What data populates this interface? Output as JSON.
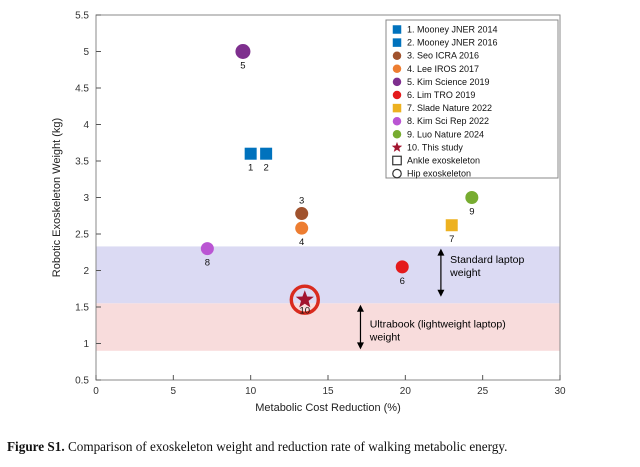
{
  "chart_data": {
    "type": "scatter",
    "xlabel": "Metabolic Cost Reduction (%)",
    "ylabel": "Robotic Exoskeleton Weight (kg)",
    "xlim": [
      0,
      30
    ],
    "ylim": [
      0.5,
      5.5
    ],
    "xticks": [
      0,
      5,
      10,
      15,
      20,
      25,
      30
    ],
    "xtick_labels": [
      "0",
      "5",
      "10",
      "15",
      "20",
      "25",
      "30"
    ],
    "yticks": [
      0.5,
      1,
      1.5,
      2,
      2.5,
      3,
      3.5,
      4,
      4.5,
      5,
      5.5
    ],
    "ytick_labels": [
      "0.5",
      "1",
      "1.5",
      "2",
      "2.5",
      "3",
      "3.5",
      "4",
      "4.5",
      "5",
      "5.5"
    ],
    "grid": false,
    "ring_color": "#D92B1E",
    "points": [
      {
        "id": "1",
        "study": "Mooney JNER 2014",
        "x": 10.0,
        "y": 3.6,
        "marker": "square",
        "color": "#0072BD",
        "size": 12
      },
      {
        "id": "2",
        "study": "Mooney JNER 2016",
        "x": 11.0,
        "y": 3.6,
        "marker": "square",
        "color": "#0072BD",
        "size": 12
      },
      {
        "id": "3",
        "study": "Seo ICRA 2016",
        "x": 13.3,
        "y": 2.78,
        "marker": "circle",
        "color": "#A0522D",
        "size": 13,
        "ldy": -10
      },
      {
        "id": "4",
        "study": "Lee IROS 2017",
        "x": 13.3,
        "y": 2.58,
        "marker": "circle",
        "color": "#ED7D31",
        "size": 13
      },
      {
        "id": "5",
        "study": "Kim Science 2019",
        "x": 9.5,
        "y": 5.0,
        "marker": "circle",
        "color": "#7E2F8E",
        "size": 15
      },
      {
        "id": "6",
        "study": "Lim TRO 2019",
        "x": 19.8,
        "y": 2.05,
        "marker": "circle",
        "color": "#E41A1C",
        "size": 13
      },
      {
        "id": "7",
        "study": "Slade Nature 2022",
        "x": 23.0,
        "y": 2.62,
        "marker": "square",
        "color": "#EDB120",
        "size": 12
      },
      {
        "id": "8",
        "study": "Kim Sci Rep 2022",
        "x": 7.2,
        "y": 2.3,
        "marker": "circle",
        "color": "#BA55D3",
        "size": 13
      },
      {
        "id": "9",
        "study": "Luo Nature 2024",
        "x": 24.3,
        "y": 3.0,
        "marker": "circle",
        "color": "#77AC30",
        "size": 13
      },
      {
        "id": "10",
        "study": "This study",
        "x": 13.5,
        "y": 1.6,
        "marker": "star",
        "color": "#A2142F",
        "size": 19,
        "ring": true,
        "ldy": 14
      }
    ],
    "bands": [
      {
        "name": "standard-laptop",
        "ymin": 1.55,
        "ymax": 2.33,
        "color": "#DBDAF3"
      },
      {
        "name": "ultrabook",
        "ymin": 0.9,
        "ymax": 1.55,
        "color": "#F8DCDC"
      }
    ],
    "annotations": [
      {
        "name": "standard-laptop",
        "lines": [
          "Standard laptop",
          "weight"
        ],
        "text_x": 22.9,
        "text_y": 2.1,
        "arrow_x": 22.3,
        "arrow_y1": 2.3,
        "arrow_y2": 1.64
      },
      {
        "name": "ultrabook",
        "lines": [
          "Ultrabook (lightweight laptop)",
          "weight"
        ],
        "text_x": 17.7,
        "text_y": 1.22,
        "arrow_x": 17.1,
        "arrow_y1": 1.53,
        "arrow_y2": 0.92
      }
    ]
  },
  "legend": {
    "items": [
      {
        "label": "1. Mooney JNER 2014",
        "marker": "square",
        "color": "#0072BD"
      },
      {
        "label": "2. Mooney JNER 2016",
        "marker": "square",
        "color": "#0072BD"
      },
      {
        "label": "3. Seo ICRA 2016",
        "marker": "circle",
        "color": "#A0522D"
      },
      {
        "label": "4. Lee IROS 2017",
        "marker": "circle",
        "color": "#ED7D31"
      },
      {
        "label": "5. Kim Science 2019",
        "marker": "circle",
        "color": "#7E2F8E"
      },
      {
        "label": "6. Lim TRO 2019",
        "marker": "circle",
        "color": "#E41A1C"
      },
      {
        "label": "7. Slade Nature 2022",
        "marker": "square",
        "color": "#EDB120"
      },
      {
        "label": "8. Kim Sci Rep 2022",
        "marker": "circle",
        "color": "#BA55D3"
      },
      {
        "label": "9. Luo Nature 2024",
        "marker": "circle",
        "color": "#77AC30"
      },
      {
        "label": "10. This study",
        "marker": "star",
        "color": "#A2142F"
      },
      {
        "label": "Ankle exoskeleton",
        "marker": "open-square",
        "color": "#333333"
      },
      {
        "label": "Hip exoskeleton",
        "marker": "open-circle",
        "color": "#333333"
      }
    ]
  },
  "caption": {
    "label": "Figure S1.",
    "text": " Comparison of exoskeleton weight and reduction rate of walking metabolic energy."
  }
}
